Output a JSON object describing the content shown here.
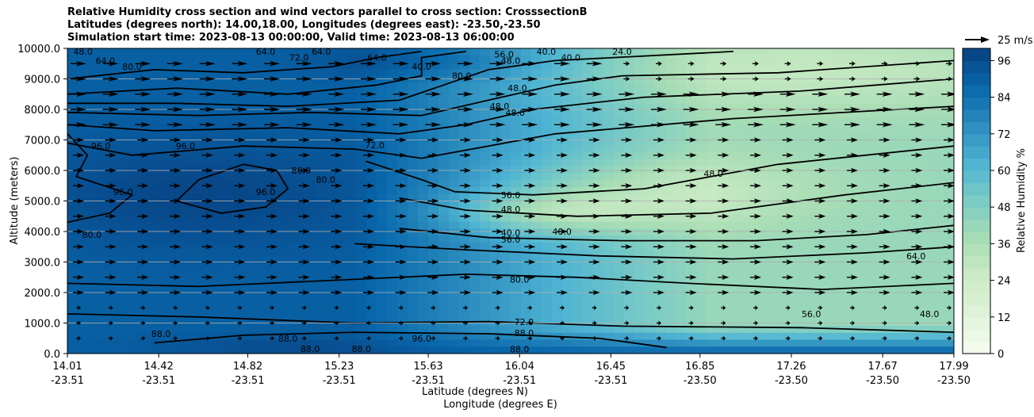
{
  "chart_data": {
    "type": "contour",
    "title_lines": [
      "Relative Humidity cross section and wind vectors parallel to cross section: CrosssectionB",
      "Latitudes (degrees north): 14.00,18.00, Longitudes (degrees east): -23.50,-23.50",
      "Simulation start time: 2023-08-13 00:00:00, Valid time: 2023-08-13 06:00:00"
    ],
    "ylabel": "Altitude (meters)",
    "xlabel": "Latitude (degrees N)",
    "xlabel2": "Longitude (degrees E)",
    "ylim": [
      0,
      10000
    ],
    "yticks": [
      "0.0",
      "1000.0",
      "2000.0",
      "3000.0",
      "4000.0",
      "5000.0",
      "6000.0",
      "7000.0",
      "8000.0",
      "9000.0",
      "10000.0"
    ],
    "xticks_lat": [
      "14.01",
      "14.42",
      "14.82",
      "15.23",
      "15.63",
      "16.04",
      "16.45",
      "16.85",
      "17.26",
      "17.67",
      "17.99"
    ],
    "xticks_lon": [
      "-23.51",
      "-23.51",
      "-23.51",
      "-23.51",
      "-23.51",
      "-23.51",
      "-23.51",
      "-23.50",
      "-23.50",
      "-23.50",
      "-23.50"
    ],
    "grid": "horizontal",
    "colorbar": {
      "label": "Relative Humidity %",
      "ticks": [
        "0",
        "12",
        "24",
        "36",
        "48",
        "60",
        "72",
        "84",
        "96"
      ],
      "range": [
        0,
        100
      ],
      "cmap": "GnBu"
    },
    "quiver_key": "25 m/s",
    "contour_labels": [
      {
        "text": "48.0",
        "lat": 14.08,
        "alt": 9900
      },
      {
        "text": "64.0",
        "lat": 14.18,
        "alt": 9600
      },
      {
        "text": "80.0",
        "lat": 14.3,
        "alt": 9400
      },
      {
        "text": "64.0",
        "lat": 14.9,
        "alt": 9900
      },
      {
        "text": "72.0",
        "lat": 15.05,
        "alt": 9700
      },
      {
        "text": "64.0",
        "lat": 15.15,
        "alt": 9900
      },
      {
        "text": "64.0",
        "lat": 15.4,
        "alt": 9700
      },
      {
        "text": "40.0",
        "lat": 15.6,
        "alt": 9400
      },
      {
        "text": "80.0",
        "lat": 15.78,
        "alt": 9100
      },
      {
        "text": "56.0",
        "lat": 15.97,
        "alt": 9800
      },
      {
        "text": "48.0",
        "lat": 16.0,
        "alt": 9600
      },
      {
        "text": "40.0",
        "lat": 16.16,
        "alt": 9900
      },
      {
        "text": "40.0",
        "lat": 16.27,
        "alt": 9700
      },
      {
        "text": "24.0",
        "lat": 16.5,
        "alt": 9900
      },
      {
        "text": "48.0",
        "lat": 16.03,
        "alt": 8700
      },
      {
        "text": "48.0",
        "lat": 15.95,
        "alt": 8100
      },
      {
        "text": "48.0",
        "lat": 16.02,
        "alt": 7900
      },
      {
        "text": "96.0",
        "lat": 14.16,
        "alt": 6800
      },
      {
        "text": "96.0",
        "lat": 14.54,
        "alt": 6800
      },
      {
        "text": "72.0",
        "lat": 15.39,
        "alt": 6830
      },
      {
        "text": "80.0",
        "lat": 15.06,
        "alt": 6000
      },
      {
        "text": "80.0",
        "lat": 15.17,
        "alt": 5700
      },
      {
        "text": "96.0",
        "lat": 14.26,
        "alt": 5300
      },
      {
        "text": "96.0",
        "lat": 14.9,
        "alt": 5300
      },
      {
        "text": "80.0",
        "lat": 14.12,
        "alt": 3900
      },
      {
        "text": "56.0",
        "lat": 16.0,
        "alt": 5200
      },
      {
        "text": "48.0",
        "lat": 16.0,
        "alt": 4730
      },
      {
        "text": "40.0",
        "lat": 16.0,
        "alt": 3960
      },
      {
        "text": "40.0",
        "lat": 16.23,
        "alt": 4000
      },
      {
        "text": "56.0",
        "lat": 16.0,
        "alt": 3740
      },
      {
        "text": "48.0",
        "lat": 16.91,
        "alt": 5900
      },
      {
        "text": "80.0",
        "lat": 16.04,
        "alt": 2430
      },
      {
        "text": "64.0",
        "lat": 17.82,
        "alt": 3200
      },
      {
        "text": "56.0",
        "lat": 17.35,
        "alt": 1300
      },
      {
        "text": "48.0",
        "lat": 17.88,
        "alt": 1300
      },
      {
        "text": "88.0",
        "lat": 14.43,
        "alt": 650
      },
      {
        "text": "72.0",
        "lat": 16.06,
        "alt": 1040
      },
      {
        "text": "88.0",
        "lat": 16.06,
        "alt": 680
      },
      {
        "text": "88.0",
        "lat": 16.04,
        "alt": 140
      },
      {
        "text": "96.0",
        "lat": 15.6,
        "alt": 500
      },
      {
        "text": "88.0",
        "lat": 15.0,
        "alt": 500
      },
      {
        "text": "88.0",
        "lat": 15.1,
        "alt": 150
      },
      {
        "text": "88.0",
        "lat": 15.33,
        "alt": 150
      }
    ]
  }
}
